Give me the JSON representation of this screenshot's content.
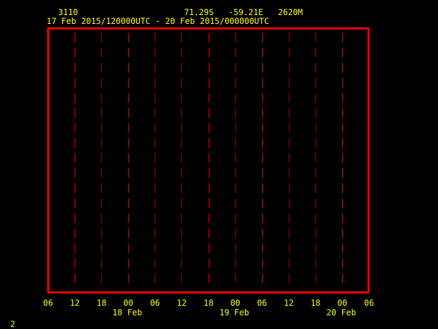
{
  "header": {
    "station": "3110",
    "location": "71.29S   -59.21E   2620M",
    "period": "17 Feb 2015/120000UTC - 20 Feb 2015/000000UTC"
  },
  "footer": {
    "page_number": "2"
  },
  "colors": {
    "frame": "#ff0000",
    "grid": "#ff0000",
    "text": "#ffff00",
    "background": "#000000"
  },
  "chart_data": {
    "type": "line",
    "title": "",
    "series": [],
    "x_tick_labels": [
      "06",
      "12",
      "18",
      "00",
      "06",
      "12",
      "18",
      "00",
      "06",
      "12",
      "18",
      "00",
      "06"
    ],
    "x_date_labels": [
      {
        "label": "18 Feb",
        "at_tick": 3
      },
      {
        "label": "19 Feb",
        "at_tick": 7
      },
      {
        "label": "20 Feb",
        "at_tick": 11
      }
    ],
    "grid": "vertical dashed lines at each 6-hour tick",
    "xlim": [
      "17 Feb 06UTC",
      "20 Feb 06UTC"
    ]
  }
}
